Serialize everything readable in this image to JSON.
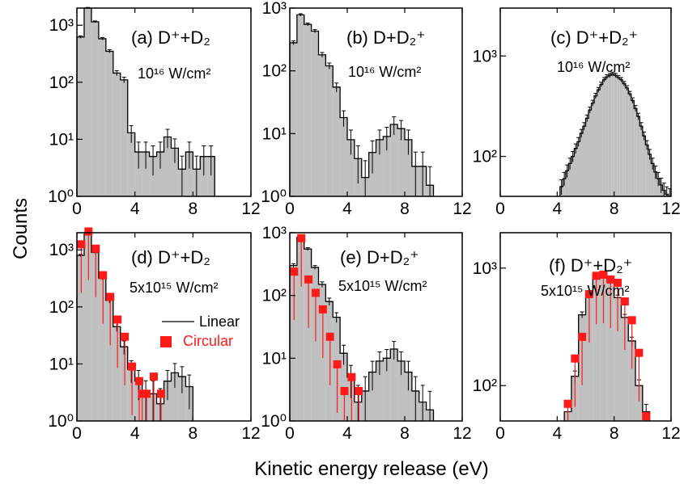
{
  "figure": {
    "ylabel": "Counts",
    "xlabel": "Kinetic energy release (eV)"
  },
  "colors": {
    "fill": "#c0c0c0",
    "line": "#000000",
    "circular": "#ff1a1a"
  },
  "chart_data": [
    {
      "id": "a",
      "type": "bar",
      "scale": "log",
      "label_text": "(a) D⁺+D₂",
      "intensity_text": "10¹⁶ W/cm²",
      "xlim": [
        0,
        12
      ],
      "ylim": [
        1,
        2000
      ],
      "xticks": [
        "0",
        "4",
        "8",
        "12"
      ],
      "yticks": [
        "10⁰",
        "10¹",
        "10²",
        "10³"
      ],
      "bin_edges": [
        0,
        0.5,
        1,
        1.5,
        2,
        2.5,
        3,
        3.5,
        4,
        4.5,
        5,
        5.5,
        6,
        6.5,
        7,
        7.5,
        8,
        8.5,
        9,
        9.5
      ],
      "linear": [
        620,
        2000,
        1150,
        580,
        350,
        145,
        110,
        13,
        6,
        6,
        5,
        6,
        11,
        7,
        3,
        6,
        3,
        5,
        5
      ],
      "circular": null
    },
    {
      "id": "b",
      "type": "bar",
      "scale": "log",
      "label_text": "(b) D+D₂⁺",
      "intensity_text": "10¹⁶ W/cm²",
      "xlim": [
        0,
        12
      ],
      "ylim": [
        1,
        1000
      ],
      "xticks": [
        "0",
        "4",
        "8",
        "12"
      ],
      "yticks": [
        "10⁰",
        "10¹",
        "10²",
        "10³"
      ],
      "bin_edges": [
        0,
        0.5,
        1,
        1.5,
        2,
        2.5,
        3,
        3.5,
        4,
        4.5,
        5,
        5.5,
        6,
        6.5,
        7,
        7.5,
        8,
        8.5,
        9,
        9.5,
        10
      ],
      "linear": [
        280,
        780,
        550,
        430,
        180,
        120,
        55,
        18,
        8,
        4,
        2,
        5,
        8,
        9,
        14,
        12,
        8,
        3,
        3,
        1.5
      ],
      "circular": null
    },
    {
      "id": "c",
      "type": "bar",
      "scale": "log",
      "label_text": "(c) D⁺+D₂⁺",
      "intensity_text": "10¹⁶ W/cm²",
      "xlim": [
        0,
        12
      ],
      "ylim": [
        40,
        3000
      ],
      "xticks": [
        "0",
        "4",
        "8",
        "12"
      ],
      "yticks": [
        "10²",
        "10³"
      ],
      "bin_edges": [
        4.2,
        4.4,
        4.6,
        4.8,
        5,
        5.2,
        5.4,
        5.6,
        5.8,
        6,
        6.2,
        6.4,
        6.6,
        6.8,
        7,
        7.2,
        7.4,
        7.6,
        7.8,
        8,
        8.2,
        8.4,
        8.6,
        8.8,
        9,
        9.2,
        9.4,
        9.6,
        9.8,
        10,
        10.2,
        10.4,
        10.6,
        10.8,
        11,
        11.2,
        11.4,
        11.6,
        11.8,
        12
      ],
      "linear": [
        50,
        60,
        72,
        85,
        100,
        120,
        140,
        170,
        200,
        240,
        290,
        340,
        400,
        460,
        520,
        580,
        620,
        640,
        660,
        640,
        610,
        580,
        530,
        480,
        420,
        360,
        300,
        250,
        200,
        160,
        130,
        105,
        85,
        70,
        60,
        52,
        46,
        42,
        40
      ],
      "circular": null
    },
    {
      "id": "d",
      "type": "bar",
      "scale": "log",
      "label_text": "(d) D⁺+D₂",
      "intensity_text": "5x10¹⁵ W/cm²",
      "xlim": [
        0,
        12
      ],
      "ylim": [
        1,
        2000
      ],
      "xticks": [
        "0",
        "4",
        "8",
        "12"
      ],
      "yticks": [
        "10⁰",
        "10¹",
        "10²",
        "10³"
      ],
      "legend": [
        "Linear",
        "Circular"
      ],
      "bin_edges": [
        0,
        0.5,
        1,
        1.5,
        2,
        2.5,
        3,
        3.5,
        4,
        4.5,
        5,
        5.5,
        6,
        6.5,
        7,
        7.5,
        8
      ],
      "linear": [
        800,
        1900,
        900,
        320,
        130,
        45,
        20,
        8,
        5,
        3,
        3,
        2,
        5,
        7,
        6,
        4
      ],
      "circular": {
        "x": [
          0.3,
          0.8,
          1.3,
          1.8,
          2.3,
          2.8,
          3.3,
          3.8,
          4.3,
          4.5,
          4.8,
          5.3,
          5.8
        ],
        "y": [
          1250,
          2100,
          1050,
          360,
          150,
          60,
          30,
          9,
          5,
          3,
          3,
          6,
          3
        ]
      }
    },
    {
      "id": "e",
      "type": "bar",
      "scale": "log",
      "label_text": "(e) D+D₂⁺",
      "intensity_text": "5x10¹⁵ W/cm²",
      "xlim": [
        0,
        12
      ],
      "ylim": [
        1,
        1000
      ],
      "xticks": [
        "0",
        "4",
        "8",
        "12"
      ],
      "yticks": [
        "10⁰",
        "10¹",
        "10²",
        "10³"
      ],
      "bin_edges": [
        0,
        0.5,
        1,
        1.5,
        2,
        2.5,
        3,
        3.5,
        4,
        4.5,
        5,
        5.5,
        6,
        6.5,
        7,
        7.5,
        8,
        8.5,
        9,
        9.5,
        10
      ],
      "linear": [
        300,
        850,
        550,
        280,
        150,
        80,
        45,
        12,
        5,
        2,
        3,
        6,
        9,
        10,
        14,
        9,
        6,
        3,
        2,
        1.5
      ],
      "circular": {
        "x": [
          0.3,
          0.8,
          1.3,
          1.8,
          2.3,
          2.8,
          3.3,
          3.8,
          4.3,
          4.8
        ],
        "y": [
          240,
          820,
          180,
          110,
          60,
          22,
          8,
          3,
          5,
          3
        ]
      }
    },
    {
      "id": "f",
      "type": "bar",
      "scale": "log",
      "label_text": "(f) D⁺+D₂⁺",
      "intensity_text": "5x10¹⁵ W/cm²",
      "xlim": [
        0,
        12
      ],
      "ylim": [
        50,
        2000
      ],
      "xticks": [
        "0",
        "4",
        "8",
        "12"
      ],
      "yticks": [
        "10²",
        "10³"
      ],
      "bin_edges": [
        4.5,
        5,
        5.5,
        6,
        6.5,
        7,
        7.5,
        8,
        8.5,
        9,
        9.5,
        10,
        10.5
      ],
      "linear": [
        60,
        120,
        400,
        600,
        880,
        880,
        760,
        560,
        380,
        240,
        100,
        60
      ],
      "circular": {
        "x": [
          4.75,
          5.25,
          5.75,
          6.25,
          6.75,
          7.25,
          7.75,
          8.25,
          8.75,
          9.25,
          9.75,
          10.25
        ],
        "y": [
          70,
          170,
          260,
          600,
          860,
          880,
          800,
          750,
          520,
          360,
          190,
          55
        ]
      }
    }
  ]
}
